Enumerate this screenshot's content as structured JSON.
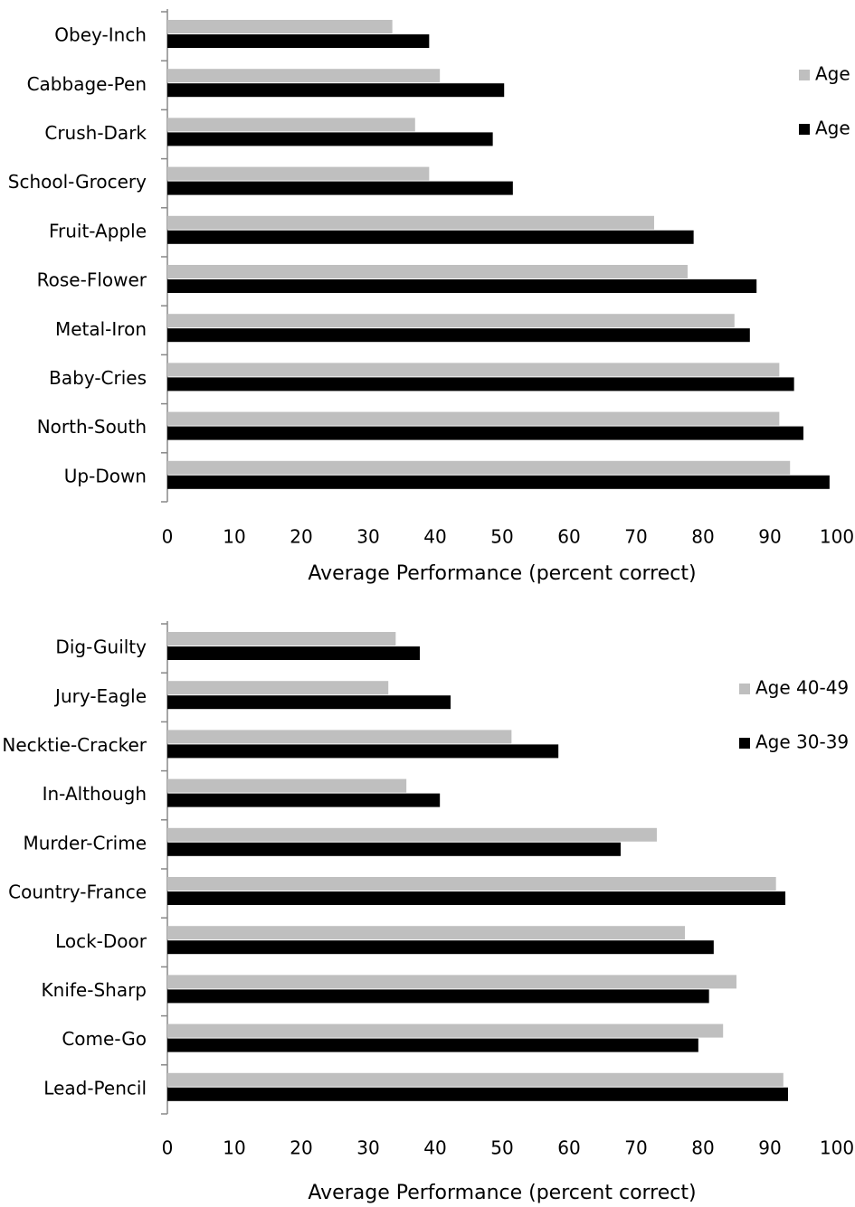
{
  "chart_data": [
    {
      "type": "bar",
      "orientation": "horizontal",
      "categories": [
        "Obey-Inch",
        "Cabbage-Pen",
        "Crush-Dark",
        "School-Grocery",
        "Fruit-Apple",
        "Rose-Flower",
        "Metal-Iron",
        "Baby-Cries",
        "North-South",
        "Up-Down"
      ],
      "series": [
        {
          "name": "Age",
          "color": "#bfbfbf",
          "values": [
            33.6,
            40.7,
            37.0,
            39.1,
            72.7,
            77.7,
            84.7,
            91.4,
            91.4,
            93.0
          ]
        },
        {
          "name": "Age",
          "color": "#000000",
          "values": [
            39.1,
            50.3,
            48.6,
            51.6,
            78.6,
            88.0,
            87.0,
            93.6,
            95.0,
            98.9
          ]
        }
      ],
      "x_label": "Average Performance (percent correct)",
      "xlim": [
        0,
        100
      ],
      "xticks": [
        0,
        10,
        20,
        30,
        40,
        50,
        60,
        70,
        80,
        90,
        100
      ],
      "legend": "upper right"
    },
    {
      "type": "bar",
      "orientation": "horizontal",
      "categories": [
        "Dig-Guilty",
        "Jury-Eagle",
        "Necktie-Cracker",
        "In-Although",
        "Murder-Crime",
        "Country-France",
        "Lock-Door",
        "Knife-Sharp",
        "Come-Go",
        "Lead-Pencil"
      ],
      "series": [
        {
          "name": "Age 40-49",
          "color": "#bfbfbf",
          "values": [
            34.1,
            33.0,
            51.4,
            35.7,
            73.1,
            90.9,
            77.3,
            85.0,
            83.0,
            92.0
          ]
        },
        {
          "name": "Age 30-39",
          "color": "#000000",
          "values": [
            37.7,
            42.3,
            58.4,
            40.7,
            67.7,
            92.3,
            81.6,
            80.9,
            79.3,
            92.7
          ]
        }
      ],
      "x_label": "Average Performance (percent correct)",
      "xlim": [
        0,
        100
      ],
      "xticks": [
        0,
        10,
        20,
        30,
        40,
        50,
        60,
        70,
        80,
        90,
        100
      ],
      "legend": "upper right"
    }
  ]
}
